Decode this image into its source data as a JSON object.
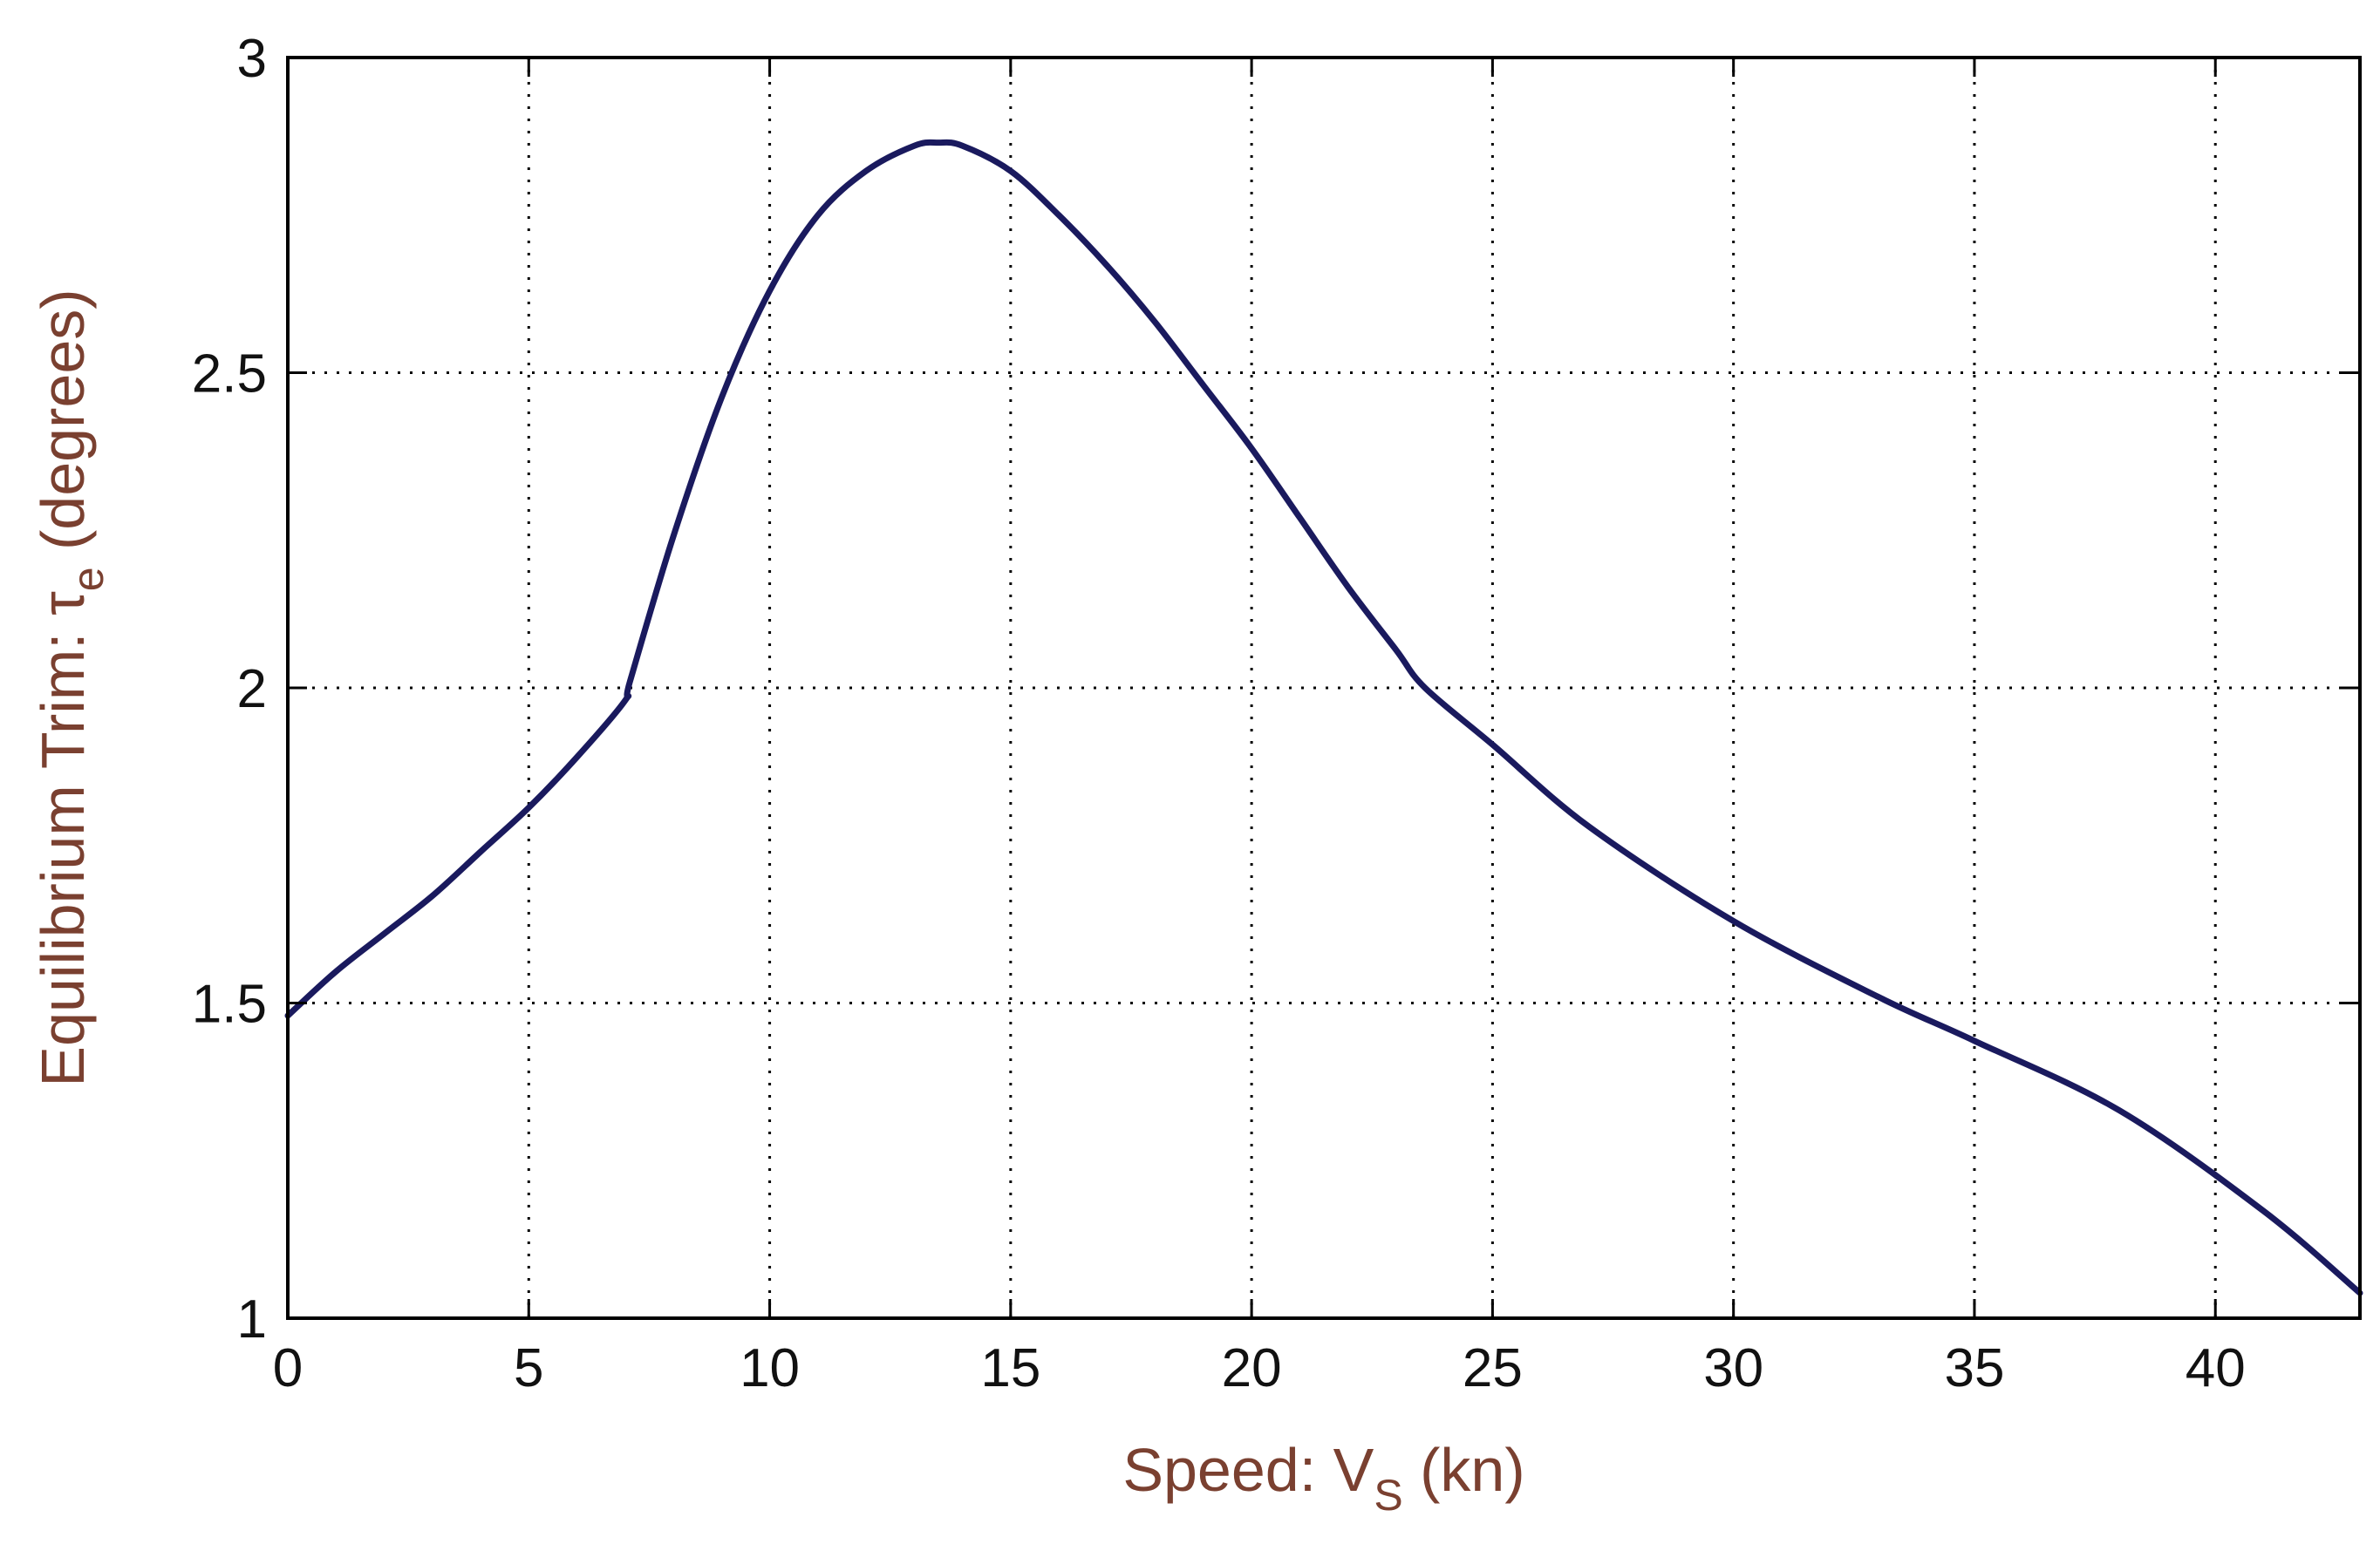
{
  "chart_data": {
    "type": "line",
    "title": "",
    "xlabel": {
      "main": "Speed: V",
      "sub": "S",
      "unit": " (kn)"
    },
    "ylabel": {
      "main": "Equilibrium Trim: τ",
      "sub": "e",
      "unit": " (degrees)"
    },
    "xlim": [
      0,
      43
    ],
    "ylim": [
      1,
      3
    ],
    "xticks": [
      0,
      5,
      10,
      15,
      20,
      25,
      30,
      35,
      40
    ],
    "yticks": [
      1,
      1.5,
      2,
      2.5,
      3
    ],
    "xtick_labels": [
      "0",
      "5",
      "10",
      "15",
      "20",
      "25",
      "30",
      "35",
      "40"
    ],
    "ytick_labels": [
      "1",
      "1.5",
      "2",
      "2.5",
      "3"
    ],
    "grid": true,
    "series": [
      {
        "color": "#1a1a5e",
        "x": [
          0,
          1,
          2,
          3,
          4,
          5,
          6,
          7,
          7.1,
          8,
          9,
          10,
          11,
          12,
          13,
          13.5,
          14,
          15,
          16,
          17,
          18,
          19,
          20,
          21,
          22,
          23,
          23.6,
          25,
          27,
          30,
          33,
          35,
          38,
          41,
          43
        ],
        "y": [
          1.48,
          1.55,
          1.61,
          1.67,
          1.74,
          1.81,
          1.89,
          1.98,
          2.01,
          2.24,
          2.46,
          2.63,
          2.75,
          2.82,
          2.86,
          2.865,
          2.86,
          2.82,
          2.75,
          2.67,
          2.58,
          2.48,
          2.38,
          2.27,
          2.16,
          2.06,
          2.0,
          1.91,
          1.78,
          1.63,
          1.51,
          1.44,
          1.33,
          1.17,
          1.04
        ]
      }
    ]
  },
  "colors": {
    "axis_label": "#7a4030",
    "line": "#1a1a5e",
    "grid": "#000000"
  }
}
